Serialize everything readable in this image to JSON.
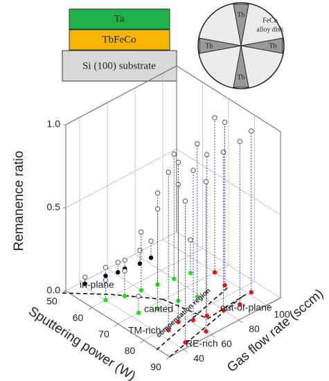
{
  "layers": [
    "Ta",
    "TbFeCo",
    "Si (100) substrate"
  ],
  "target": {
    "label": [
      "FeCo",
      "alloy disk"
    ],
    "segments": [
      "Tb",
      "Tb",
      "Tb",
      "Tb"
    ]
  },
  "chart_data": {
    "type": "scatter3d",
    "xlabel": "Sputtering power (W)",
    "ylabel": "Gas flow rate (sccm)",
    "zlabel": "Remanence ratio",
    "xlim": [
      50,
      90
    ],
    "xticks": [
      50,
      60,
      70,
      80,
      90
    ],
    "ylim": [
      30,
      110
    ],
    "yticks": [
      40,
      60,
      80,
      100
    ],
    "zlim": [
      0,
      1
    ],
    "zticks": [
      {
        "value": 0,
        "label": "0.0"
      },
      {
        "value": 0.5,
        "label": "0.5"
      },
      {
        "value": 1,
        "label": "1.0"
      }
    ],
    "grid": true,
    "annotations": [
      "TM-rich",
      "RE-rich",
      "compensation region"
    ],
    "series": [
      {
        "name": "in-plane",
        "color": "#000000",
        "x": [
          51,
          52,
          53,
          53,
          54,
          54
        ],
        "y": [
          42,
          55,
          62,
          67,
          76,
          84
        ],
        "z": [
          0.04,
          0.05,
          0.06,
          0.05,
          0.08,
          0.1
        ]
      },
      {
        "name": "canted",
        "color": "#22dd22",
        "x": [
          60,
          62,
          63,
          64,
          65,
          66,
          70,
          72,
          73,
          75
        ],
        "y": [
          40,
          50,
          60,
          70,
          80,
          90,
          45,
          55,
          68,
          78
        ],
        "z": [
          0.12,
          0.15,
          0.35,
          0.55,
          0.75,
          0.2,
          0.1,
          0.6,
          0.7,
          0.92
        ]
      },
      {
        "name": "out-of-plane",
        "color": "#ee1111",
        "x": [
          81,
          80,
          82,
          83,
          84,
          85,
          83,
          88,
          88,
          76,
          70
        ],
        "y": [
          46,
          55,
          62,
          70,
          80,
          90,
          102,
          45,
          60,
          96,
          100
        ],
        "z": [
          0.95,
          0.96,
          0.9,
          0.97,
          0.95,
          0.98,
          0.97,
          0.85,
          0.9,
          0.98,
          0.93
        ]
      }
    ]
  }
}
